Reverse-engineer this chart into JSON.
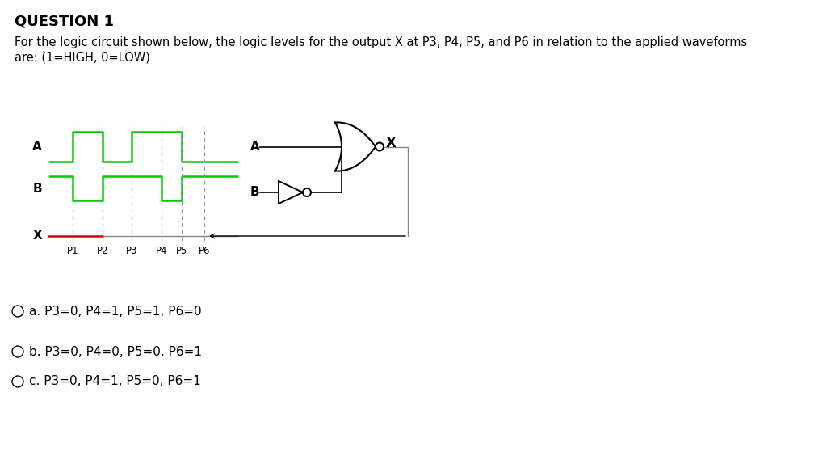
{
  "title": "QUESTION 1",
  "desc_line1": "For the logic circuit shown below, the logic levels for the output X at P3, P4, P5, and P6 in relation to the applied waveforms",
  "desc_line2": "are: (1=HIGH, 0=LOW)",
  "options": [
    "a. P3=0, P4=1, P5=1, P6=0",
    "b. P3=0, P4=0, P5=0, P6=1",
    "c. P3=0, P4=1, P5=0, P6=1"
  ],
  "option_bold": [
    false,
    false,
    false
  ],
  "bg_color": "#ffffff",
  "waveform_color": "#00cc00",
  "x_line_color_red": "#dd0000",
  "x_line_color_gray": "#888888",
  "grid_color": "#999999",
  "gate_color": "#333333",
  "font_color": "#000000",
  "p_labels": [
    "P1",
    "P2",
    "P3",
    "P4",
    "P5",
    "P6"
  ]
}
